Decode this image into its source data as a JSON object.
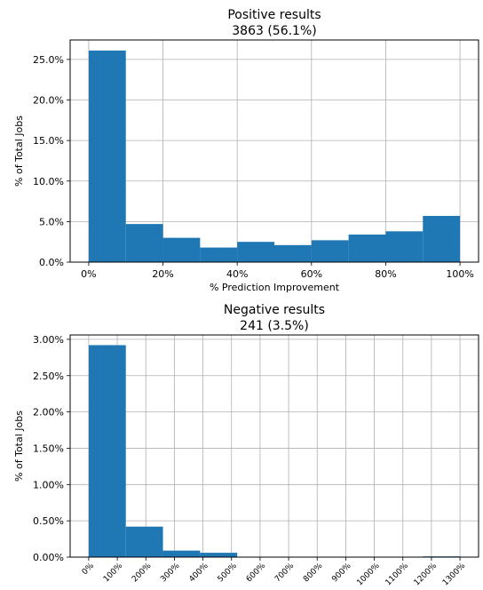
{
  "chart_data": [
    {
      "type": "bar",
      "title": "Positive results",
      "subtitle": "3863 (56.1%)",
      "xlabel": "% Prediction Improvement",
      "ylabel": "% of Total Jobs",
      "bin_edges": [
        0,
        10,
        20,
        30,
        40,
        50,
        60,
        70,
        80,
        90,
        100
      ],
      "values": [
        26.1,
        4.7,
        3.0,
        1.8,
        2.5,
        2.1,
        2.7,
        3.4,
        3.8,
        5.7
      ],
      "xlim": [
        -5,
        105
      ],
      "ylim": [
        0,
        27.4
      ],
      "x_ticks": [
        0,
        20,
        40,
        60,
        80,
        100
      ],
      "x_tick_labels": [
        "0%",
        "20%",
        "40%",
        "60%",
        "80%",
        "100%"
      ],
      "y_ticks": [
        0,
        5,
        10,
        15,
        20,
        25
      ],
      "y_tick_labels": [
        "0.0%",
        "5.0%",
        "10.0%",
        "15.0%",
        "20.0%",
        "25.0%"
      ],
      "grid": true,
      "color": "#1f77b4"
    },
    {
      "type": "bar",
      "title": "Negative results",
      "subtitle": "241 (3.5%)",
      "xlabel": "",
      "ylabel": "% of Total Jobs",
      "bin_edges": [
        0,
        130,
        260,
        390,
        520,
        650,
        780,
        910,
        1040,
        1170,
        1300
      ],
      "values": [
        2.92,
        0.42,
        0.09,
        0.06,
        0,
        0,
        0,
        0,
        0,
        0.01
      ],
      "xlim": [
        -65,
        1365
      ],
      "ylim": [
        0,
        3.06
      ],
      "x_ticks": [
        0,
        100,
        200,
        300,
        400,
        500,
        600,
        700,
        800,
        900,
        1000,
        1100,
        1200,
        1300
      ],
      "x_tick_labels": [
        "0%",
        "100%",
        "200%",
        "300%",
        "400%",
        "500%",
        "600%",
        "700%",
        "800%",
        "900%",
        "1000%",
        "1100%",
        "1200%",
        "1300%"
      ],
      "y_ticks": [
        0,
        0.5,
        1.0,
        1.5,
        2.0,
        2.5,
        3.0
      ],
      "y_tick_labels": [
        "0.00%",
        "0.50%",
        "1.00%",
        "1.50%",
        "2.00%",
        "2.50%",
        "3.00%"
      ],
      "grid": true,
      "color": "#1f77b4"
    }
  ]
}
